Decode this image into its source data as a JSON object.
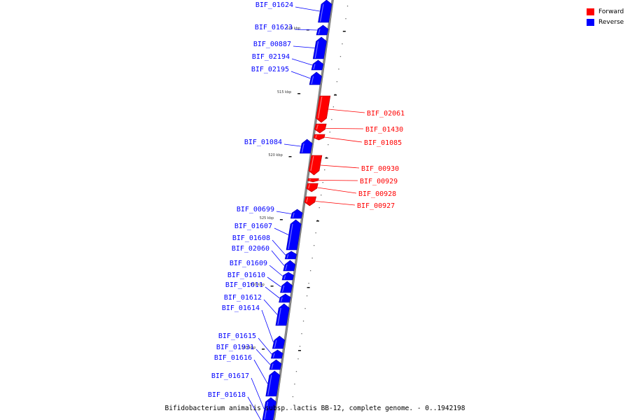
{
  "colors": {
    "forward": "#ff0000",
    "reverse": "#0000ff",
    "axis": "#888888"
  },
  "legend": [
    {
      "label": "Forward",
      "color": "#ff0000"
    },
    {
      "label": "Reverse",
      "color": "#0000ff"
    }
  ],
  "caption": "Bifidobacterium animalis subsp. lactis BB-12, complete genome. - 0..1942198",
  "kbp_labels": [
    "510 kbp",
    "515 kbp",
    "520 kbp",
    "525 kbp",
    "530 kbp",
    "535 kbp"
  ],
  "genes_reverse": [
    "BIF_01624",
    "BIF_01623",
    "BIF_00887",
    "BIF_02194",
    "BIF_02195",
    "BIF_01084",
    "BIF_00699",
    "BIF_01607",
    "BIF_01608",
    "BIF_02060",
    "BIF_01609",
    "BIF_01610",
    "BIF_01611",
    "BIF_01612",
    "BIF_01614",
    "BIF_01615",
    "BIF_01931",
    "BIF_01616",
    "BIF_01617",
    "BIF_01618"
  ],
  "genes_forward": [
    "BIF_02061",
    "BIF_01430",
    "BIF_01085",
    "BIF_00930",
    "BIF_00929",
    "BIF_00928",
    "BIF_00927"
  ]
}
